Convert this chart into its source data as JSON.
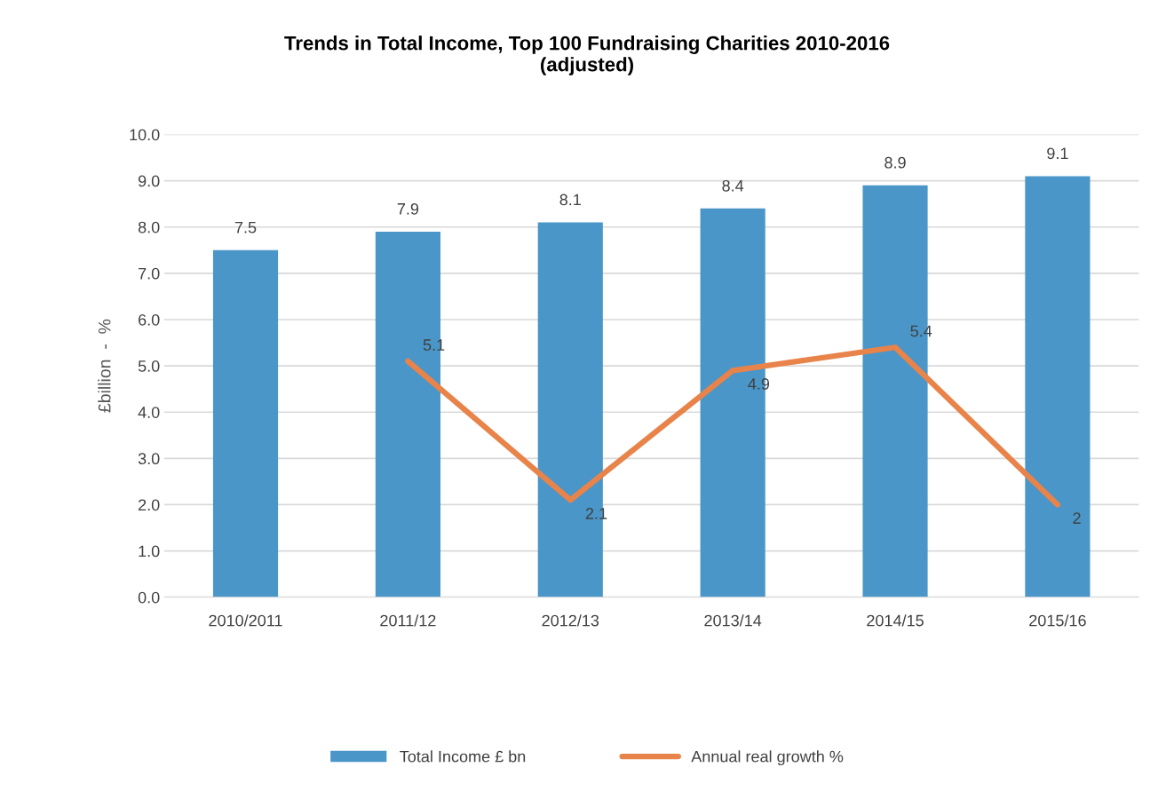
{
  "chart_data": {
    "type": "bar",
    "title": "Trends in Total Income, Top 100 Fundraising Charities 2010-2016\n(adjusted)",
    "ylabel": "£billion  -  %",
    "categories": [
      "2010/2011",
      "2011/12",
      "2012/13",
      "2013/14",
      "2014/15",
      "2015/16"
    ],
    "series": [
      {
        "name": "Total Income £ bn",
        "color": "#4a96c8",
        "values": [
          7.5,
          7.9,
          8.1,
          8.4,
          8.9,
          9.1
        ],
        "value_labels": [
          "7.5",
          "7.9",
          "8.1",
          "8.4",
          "8.9",
          "9.1"
        ]
      },
      {
        "name": "Annual real growth %",
        "type": "line",
        "color": "#e8834a",
        "values": [
          null,
          5.1,
          2.1,
          4.9,
          5.4,
          2
        ],
        "value_labels": [
          null,
          "5.1",
          "2.1",
          "4.9",
          "5.4",
          "2"
        ]
      }
    ],
    "ylim": [
      0,
      10
    ],
    "yticks": [
      {
        "value": 0,
        "label": "0.0"
      },
      {
        "value": 1,
        "label": "1.0"
      },
      {
        "value": 2,
        "label": "2.0"
      },
      {
        "value": 3,
        "label": "3.0"
      },
      {
        "value": 4,
        "label": "4.0"
      },
      {
        "value": 5,
        "label": "5.0"
      },
      {
        "value": 6,
        "label": "6.0"
      },
      {
        "value": 7,
        "label": "7.0"
      },
      {
        "value": 8,
        "label": "8.0"
      },
      {
        "value": 9,
        "label": "9.0"
      },
      {
        "value": 10,
        "label": "10.0"
      }
    ],
    "grid": "y",
    "legend": "bottom",
    "line_style": "solid",
    "marker": "none"
  }
}
